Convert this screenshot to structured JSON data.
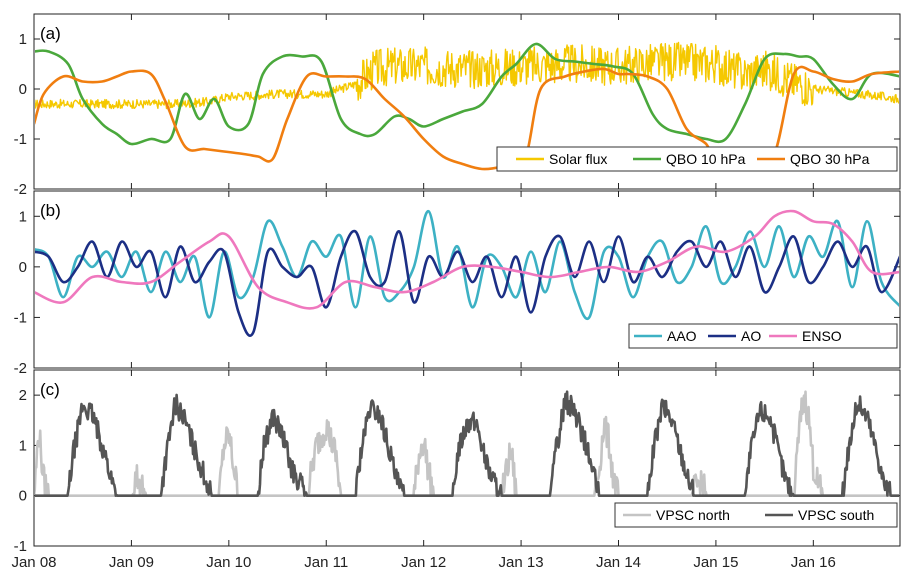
{
  "chart_data": [
    {
      "type": "line",
      "panel_label": "(a)",
      "ylim": [
        -2,
        1.5
      ],
      "yticks": [
        -2,
        -1,
        0,
        1
      ],
      "xlim": [
        2008.0,
        2016.9
      ],
      "legend_position": "bottom-right",
      "series": [
        {
          "name": "Solar flux",
          "color": "#f5c800",
          "noise": 0.18,
          "x": [
            2008.0,
            2008.5,
            2009.0,
            2009.5,
            2009.8,
            2010.0,
            2010.5,
            2011.0,
            2011.3,
            2011.5,
            2011.7,
            2012.0,
            2012.5,
            2013.0,
            2013.5,
            2014.0,
            2014.5,
            2015.0,
            2015.3,
            2015.5,
            2015.8,
            2016.0,
            2016.5,
            2016.9
          ],
          "y": [
            -0.3,
            -0.3,
            -0.3,
            -0.3,
            -0.25,
            -0.15,
            -0.1,
            -0.1,
            0.1,
            0.4,
            0.45,
            0.45,
            0.4,
            0.45,
            0.5,
            0.45,
            0.55,
            0.5,
            0.3,
            0.4,
            0.15,
            0.0,
            -0.1,
            -0.2
          ]
        },
        {
          "name": "QBO 10 hPa",
          "color": "#4aa83c",
          "noise": 0,
          "x": [
            2008.0,
            2008.15,
            2008.35,
            2008.5,
            2008.7,
            2008.85,
            2009.0,
            2009.2,
            2009.4,
            2009.55,
            2009.7,
            2009.85,
            2010.0,
            2010.2,
            2010.35,
            2010.55,
            2010.75,
            2010.95,
            2011.15,
            2011.35,
            2011.5,
            2011.7,
            2011.85,
            2012.0,
            2012.2,
            2012.4,
            2012.6,
            2012.8,
            2012.95,
            2013.15,
            2013.35,
            2013.55,
            2013.75,
            2013.95,
            2014.15,
            2014.35,
            2014.5,
            2014.7,
            2014.9,
            2015.1,
            2015.3,
            2015.5,
            2015.7,
            2015.85,
            2016.0,
            2016.2,
            2016.4,
            2016.6,
            2016.9
          ],
          "y": [
            0.75,
            0.75,
            0.5,
            -0.2,
            -0.7,
            -0.9,
            -1.1,
            -1.0,
            -1.0,
            -0.1,
            -0.6,
            -0.2,
            -0.75,
            -0.7,
            0.3,
            0.65,
            0.65,
            0.55,
            -0.6,
            -0.9,
            -0.9,
            -0.55,
            -0.6,
            -0.75,
            -0.6,
            -0.45,
            -0.3,
            0.25,
            0.5,
            0.9,
            0.6,
            0.55,
            0.5,
            0.45,
            0.3,
            -0.5,
            -0.8,
            -0.9,
            -1.0,
            -1.0,
            -0.3,
            0.6,
            0.7,
            0.65,
            0.6,
            0.1,
            -0.2,
            0.3,
            0.25
          ]
        },
        {
          "name": "QBO 30 hPa",
          "color": "#f07e10",
          "noise": 0,
          "x": [
            2008.0,
            2008.1,
            2008.3,
            2008.5,
            2008.7,
            2008.85,
            2009.0,
            2009.2,
            2009.35,
            2009.55,
            2009.75,
            2009.95,
            2010.15,
            2010.3,
            2010.45,
            2010.6,
            2010.8,
            2011.0,
            2011.2,
            2011.4,
            2011.6,
            2011.8,
            2012.0,
            2012.2,
            2012.4,
            2012.6,
            2012.8,
            2012.9,
            2013.05,
            2013.2,
            2013.45,
            2013.65,
            2013.85,
            2014.0,
            2014.1,
            2014.3,
            2014.5,
            2014.7,
            2014.9,
            2015.0,
            2015.2,
            2015.4,
            2015.6,
            2015.8,
            2016.0,
            2016.2,
            2016.4,
            2016.6,
            2016.9
          ],
          "y": [
            -0.7,
            -0.1,
            0.25,
            0.15,
            0.15,
            0.25,
            0.35,
            0.3,
            -0.25,
            -1.15,
            -1.2,
            -1.25,
            -1.3,
            -1.35,
            -1.4,
            -0.6,
            0.25,
            0.25,
            0.25,
            0.2,
            -0.2,
            -0.55,
            -1.0,
            -1.35,
            -1.5,
            -1.6,
            -1.55,
            -1.45,
            -1.35,
            0.0,
            0.25,
            0.35,
            0.4,
            0.3,
            0.3,
            0.25,
            0.0,
            -0.8,
            -1.1,
            -1.45,
            -1.3,
            -1.4,
            -1.3,
            0.3,
            0.35,
            0.2,
            0.15,
            0.3,
            0.35
          ]
        }
      ]
    },
    {
      "type": "line",
      "panel_label": "(b)",
      "ylim": [
        -2,
        1.5
      ],
      "yticks": [
        -2,
        -1,
        0,
        1
      ],
      "xlim": [
        2008.0,
        2016.9
      ],
      "legend_position": "bottom-right",
      "series": [
        {
          "name": "AAO",
          "color": "#3db1c4",
          "noise": 0,
          "x": [
            2008.0,
            2008.15,
            2008.3,
            2008.45,
            2008.6,
            2008.75,
            2008.9,
            2009.05,
            2009.2,
            2009.35,
            2009.5,
            2009.65,
            2009.8,
            2009.95,
            2010.1,
            2010.25,
            2010.4,
            2010.55,
            2010.7,
            2010.85,
            2011.0,
            2011.15,
            2011.3,
            2011.45,
            2011.6,
            2011.75,
            2011.9,
            2012.05,
            2012.2,
            2012.35,
            2012.5,
            2012.65,
            2012.8,
            2012.95,
            2013.1,
            2013.25,
            2013.4,
            2013.55,
            2013.7,
            2013.85,
            2014.0,
            2014.15,
            2014.3,
            2014.45,
            2014.6,
            2014.75,
            2014.9,
            2015.05,
            2015.2,
            2015.35,
            2015.5,
            2015.65,
            2015.8,
            2015.95,
            2016.1,
            2016.25,
            2016.4,
            2016.55,
            2016.7,
            2016.9
          ],
          "y": [
            0.35,
            0.2,
            -0.6,
            0.2,
            0.0,
            0.3,
            -0.2,
            0.3,
            -0.5,
            0.3,
            -0.3,
            0.2,
            -1.0,
            0.3,
            -0.6,
            -0.2,
            0.9,
            0.4,
            -0.2,
            0.5,
            0.2,
            0.6,
            -0.8,
            0.6,
            -0.6,
            -0.5,
            0.0,
            1.1,
            -0.2,
            0.4,
            -0.8,
            0.2,
            0.0,
            -0.6,
            0.3,
            -0.5,
            0.5,
            -0.5,
            -1.0,
            0.3,
            0.2,
            -0.6,
            0.2,
            0.5,
            -0.3,
            0.0,
            0.8,
            -0.3,
            0.0,
            0.7,
            0.0,
            0.8,
            -0.2,
            0.6,
            0.2,
            0.9,
            -0.4,
            0.9,
            -0.3,
            -0.8
          ]
        },
        {
          "name": "AO",
          "color": "#1c2f85",
          "noise": 0,
          "x": [
            2008.0,
            2008.15,
            2008.3,
            2008.45,
            2008.6,
            2008.75,
            2008.9,
            2009.05,
            2009.2,
            2009.35,
            2009.5,
            2009.65,
            2009.8,
            2009.95,
            2010.1,
            2010.25,
            2010.4,
            2010.55,
            2010.7,
            2010.85,
            2011.0,
            2011.15,
            2011.3,
            2011.45,
            2011.6,
            2011.75,
            2011.9,
            2012.05,
            2012.2,
            2012.35,
            2012.5,
            2012.65,
            2012.8,
            2012.95,
            2013.1,
            2013.25,
            2013.4,
            2013.55,
            2013.7,
            2013.85,
            2014.0,
            2014.15,
            2014.3,
            2014.45,
            2014.6,
            2014.75,
            2014.9,
            2015.05,
            2015.2,
            2015.35,
            2015.5,
            2015.65,
            2015.8,
            2015.95,
            2016.1,
            2016.25,
            2016.4,
            2016.55,
            2016.7,
            2016.9
          ],
          "y": [
            0.3,
            0.2,
            -0.3,
            0.0,
            0.5,
            -0.2,
            0.5,
            0.0,
            0.3,
            -0.6,
            0.4,
            -0.3,
            0.1,
            0.3,
            -0.9,
            -1.3,
            0.3,
            0.0,
            -0.2,
            0.0,
            -0.8,
            0.2,
            0.7,
            -0.2,
            -0.3,
            0.7,
            -0.7,
            0.2,
            -0.2,
            0.3,
            -0.3,
            0.2,
            -0.6,
            0.2,
            -0.9,
            0.2,
            0.6,
            -0.2,
            0.5,
            -0.3,
            0.6,
            -0.3,
            0.2,
            -0.2,
            0.3,
            0.5,
            0.0,
            0.5,
            -0.2,
            0.4,
            -0.5,
            0.0,
            0.6,
            -0.3,
            0.0,
            0.5,
            0.0,
            0.4,
            -0.5,
            0.25
          ]
        },
        {
          "name": "ENSO",
          "color": "#ef78be",
          "noise": 0,
          "x": [
            2008.0,
            2008.3,
            2008.6,
            2008.9,
            2009.2,
            2009.5,
            2009.8,
            2010.0,
            2010.3,
            2010.6,
            2010.9,
            2011.2,
            2011.5,
            2011.8,
            2012.1,
            2012.4,
            2012.7,
            2013.0,
            2013.3,
            2013.6,
            2013.9,
            2014.2,
            2014.5,
            2014.8,
            2015.1,
            2015.4,
            2015.6,
            2015.8,
            2016.0,
            2016.2,
            2016.4,
            2016.6,
            2016.9
          ],
          "y": [
            -0.5,
            -0.7,
            -0.2,
            -0.3,
            -0.3,
            0.1,
            0.5,
            0.6,
            -0.4,
            -0.7,
            -0.8,
            -0.3,
            -0.4,
            -0.5,
            -0.3,
            0.0,
            0.0,
            -0.1,
            -0.2,
            -0.1,
            0.0,
            -0.1,
            0.1,
            0.4,
            0.3,
            0.6,
            1.0,
            1.1,
            0.9,
            0.85,
            0.5,
            -0.1,
            -0.1
          ]
        }
      ]
    },
    {
      "type": "line",
      "panel_label": "(c)",
      "ylim": [
        -1,
        2.5
      ],
      "yticks": [
        -1,
        0,
        1,
        2
      ],
      "xlim": [
        2008.0,
        2016.9
      ],
      "legend_position": "bottom-right",
      "series": [
        {
          "name": "VPSC north",
          "color": "#c4c4c4",
          "noise": 0.3,
          "x": [
            2008.0,
            2008.05,
            2008.1,
            2008.15,
            2008.2,
            2008.25,
            2008.95,
            2009.0,
            2009.05,
            2009.1,
            2009.15,
            2009.85,
            2009.9,
            2009.95,
            2010.0,
            2010.05,
            2010.1,
            2010.75,
            2010.8,
            2010.9,
            2011.0,
            2011.1,
            2011.15,
            2011.85,
            2011.9,
            2011.95,
            2012.0,
            2012.05,
            2012.1,
            2012.8,
            2012.85,
            2012.9,
            2012.95,
            2013.75,
            2013.8,
            2013.85,
            2013.9,
            2013.95,
            2014.0,
            2014.05,
            2014.75,
            2014.8,
            2014.85,
            2014.9,
            2015.75,
            2015.8,
            2015.85,
            2015.9,
            2015.95,
            2016.0,
            2016.05,
            2016.1,
            2016.9
          ],
          "y": [
            0.0,
            1.3,
            0.3,
            0.0,
            0.0,
            0.0,
            0.0,
            0.0,
            0.4,
            0.2,
            0.0,
            0.0,
            0.0,
            1.0,
            1.2,
            0.6,
            0.0,
            0.0,
            0.0,
            1.0,
            1.4,
            0.8,
            0.0,
            0.0,
            0.0,
            0.8,
            1.1,
            0.5,
            0.0,
            0.0,
            0.5,
            0.9,
            0.0,
            0.0,
            0.5,
            1.4,
            1.1,
            0.3,
            0.0,
            0.0,
            0.0,
            0.2,
            0.3,
            0.0,
            0.0,
            0.0,
            1.2,
            2.0,
            1.6,
            0.6,
            0.2,
            0.0,
            0.0
          ]
        },
        {
          "name": "VPSC south",
          "color": "#555555",
          "noise": 0.22,
          "x": [
            2008.0,
            2008.35,
            2008.4,
            2008.5,
            2008.6,
            2008.7,
            2008.8,
            2008.85,
            2009.3,
            2009.35,
            2009.45,
            2009.55,
            2009.65,
            2009.75,
            2009.82,
            2010.3,
            2010.35,
            2010.45,
            2010.55,
            2010.65,
            2010.72,
            2010.8,
            2011.3,
            2011.35,
            2011.45,
            2011.55,
            2011.65,
            2011.72,
            2011.8,
            2012.3,
            2012.35,
            2012.45,
            2012.55,
            2012.65,
            2012.72,
            2012.8,
            2013.3,
            2013.35,
            2013.45,
            2013.55,
            2013.65,
            2013.75,
            2013.8,
            2014.3,
            2014.35,
            2014.45,
            2014.55,
            2014.65,
            2014.72,
            2014.8,
            2015.3,
            2015.35,
            2015.45,
            2015.55,
            2015.65,
            2015.72,
            2015.8,
            2016.3,
            2016.35,
            2016.45,
            2016.55,
            2016.65,
            2016.72,
            2016.8,
            2016.9
          ],
          "y": [
            0.0,
            0.0,
            0.8,
            1.8,
            1.6,
            1.0,
            0.3,
            0.0,
            0.0,
            0.7,
            1.85,
            1.5,
            0.9,
            0.4,
            0.0,
            0.0,
            0.9,
            1.6,
            1.2,
            0.5,
            0.3,
            0.0,
            0.0,
            0.8,
            1.75,
            1.6,
            0.9,
            0.3,
            0.0,
            0.0,
            0.9,
            1.5,
            1.4,
            0.6,
            0.3,
            0.0,
            0.0,
            0.8,
            1.9,
            1.7,
            1.1,
            0.4,
            0.0,
            0.0,
            0.8,
            1.8,
            1.5,
            0.8,
            0.3,
            0.0,
            0.0,
            0.8,
            1.7,
            1.6,
            0.8,
            0.3,
            0.0,
            0.0,
            0.8,
            1.85,
            1.6,
            0.9,
            0.3,
            0.0,
            0.0
          ]
        }
      ]
    }
  ],
  "x_axis": {
    "tick_values": [
      2008.0,
      2009.0,
      2010.0,
      2011.0,
      2012.0,
      2013.0,
      2014.0,
      2015.0,
      2016.0
    ],
    "tick_labels": [
      "Jan 08",
      "Jan 09",
      "Jan 10",
      "Jan 11",
      "Jan 12",
      "Jan 13",
      "Jan 14",
      "Jan 15",
      "Jan 16"
    ]
  }
}
